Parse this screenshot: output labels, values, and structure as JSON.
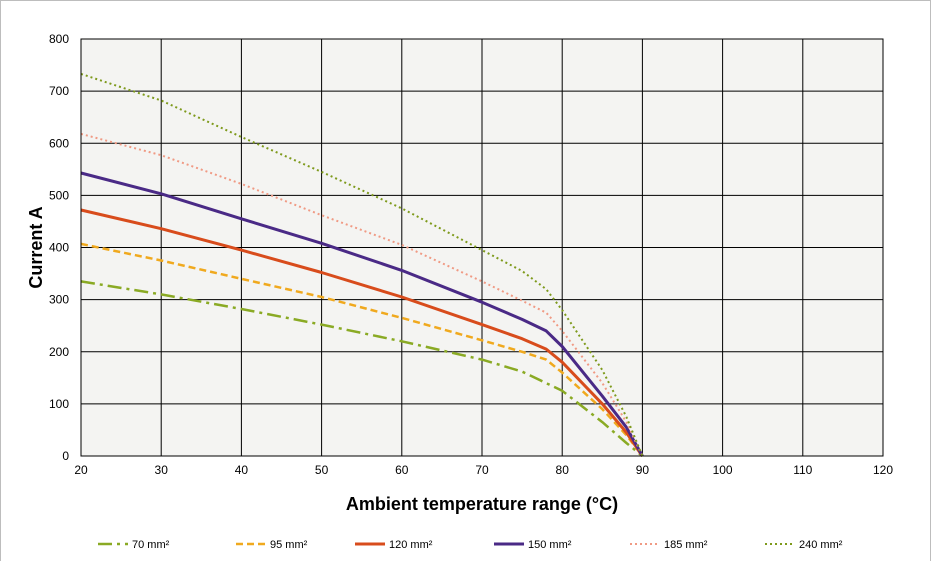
{
  "chart_data": {
    "type": "line",
    "title": "",
    "xlabel": "Ambient temperature range (°C)",
    "ylabel": "Current A",
    "xlim": [
      20,
      120
    ],
    "ylim": [
      0,
      800
    ],
    "xticks": [
      "20",
      "30",
      "40",
      "50",
      "60",
      "70",
      "80",
      "90",
      "100",
      "110",
      "120"
    ],
    "yticks": [
      "0",
      "100",
      "200",
      "300",
      "400",
      "500",
      "600",
      "700",
      "800"
    ],
    "grid": true,
    "plot_background": "#f4f4f2",
    "legend_position": "bottom",
    "series": [
      {
        "name": "70 mm²",
        "color": "#8aaa24",
        "dash": "dash-dot",
        "points": [
          [
            20,
            335
          ],
          [
            30,
            310
          ],
          [
            40,
            282
          ],
          [
            50,
            252
          ],
          [
            60,
            220
          ],
          [
            70,
            185
          ],
          [
            75,
            162
          ],
          [
            80,
            125
          ],
          [
            85,
            65
          ],
          [
            88,
            25
          ],
          [
            90,
            0
          ]
        ]
      },
      {
        "name": "95 mm²",
        "color": "#f0a91e",
        "dash": "dash",
        "points": [
          [
            20,
            407
          ],
          [
            30,
            375
          ],
          [
            40,
            340
          ],
          [
            50,
            305
          ],
          [
            60,
            265
          ],
          [
            70,
            222
          ],
          [
            75,
            200
          ],
          [
            78,
            185
          ],
          [
            80,
            160
          ],
          [
            85,
            90
          ],
          [
            88,
            40
          ],
          [
            90,
            0
          ]
        ]
      },
      {
        "name": "120 mm²",
        "color": "#d84c1c",
        "dash": "solid",
        "points": [
          [
            20,
            472
          ],
          [
            30,
            436
          ],
          [
            40,
            395
          ],
          [
            50,
            352
          ],
          [
            60,
            305
          ],
          [
            70,
            252
          ],
          [
            75,
            225
          ],
          [
            78,
            205
          ],
          [
            80,
            180
          ],
          [
            85,
            100
          ],
          [
            88,
            45
          ],
          [
            90,
            0
          ]
        ]
      },
      {
        "name": "150 mm²",
        "color": "#4a2a86",
        "dash": "solid",
        "points": [
          [
            20,
            543
          ],
          [
            30,
            503
          ],
          [
            40,
            455
          ],
          [
            50,
            408
          ],
          [
            60,
            356
          ],
          [
            70,
            295
          ],
          [
            75,
            262
          ],
          [
            78,
            240
          ],
          [
            80,
            210
          ],
          [
            85,
            115
          ],
          [
            88,
            55
          ],
          [
            90,
            0
          ]
        ]
      },
      {
        "name": "185 mm²",
        "color": "#f09a84",
        "dash": "dot",
        "points": [
          [
            20,
            618
          ],
          [
            30,
            577
          ],
          [
            40,
            522
          ],
          [
            50,
            462
          ],
          [
            60,
            405
          ],
          [
            70,
            335
          ],
          [
            75,
            298
          ],
          [
            78,
            275
          ],
          [
            80,
            240
          ],
          [
            85,
            140
          ],
          [
            88,
            65
          ],
          [
            90,
            0
          ]
        ]
      },
      {
        "name": "240 mm²",
        "color": "#7e9a1c",
        "dash": "dot",
        "points": [
          [
            20,
            733
          ],
          [
            30,
            682
          ],
          [
            40,
            612
          ],
          [
            50,
            545
          ],
          [
            60,
            475
          ],
          [
            70,
            395
          ],
          [
            75,
            355
          ],
          [
            78,
            320
          ],
          [
            80,
            280
          ],
          [
            85,
            165
          ],
          [
            88,
            75
          ],
          [
            90,
            0
          ]
        ]
      }
    ]
  }
}
